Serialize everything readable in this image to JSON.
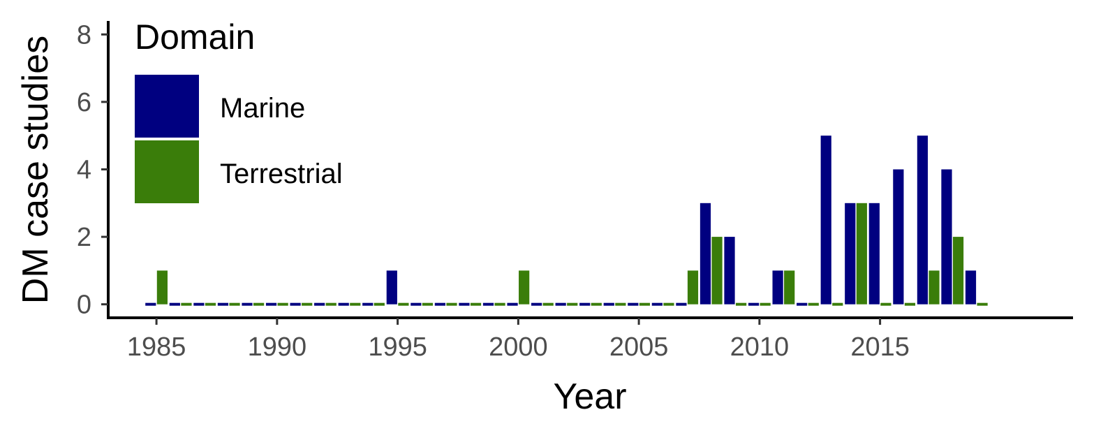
{
  "chart_data": {
    "type": "bar",
    "xlabel": "Year",
    "ylabel": "DM case studies",
    "x": [
      1985,
      1986,
      1987,
      1988,
      1989,
      1990,
      1991,
      1992,
      1993,
      1994,
      1995,
      1996,
      1997,
      1998,
      1999,
      2000,
      2001,
      2002,
      2003,
      2004,
      2005,
      2006,
      2007,
      2008,
      2009,
      2010,
      2011,
      2012,
      2013,
      2014,
      2015,
      2016,
      2017,
      2018,
      2019
    ],
    "x_ticks": [
      "1985",
      "1990",
      "1995",
      "2000",
      "2005",
      "2010",
      "2015"
    ],
    "x_tick_values": [
      1985,
      1990,
      1995,
      2000,
      2005,
      2010,
      2015
    ],
    "xlim": [
      1983,
      2023
    ],
    "y_ticks": [
      "0",
      "2",
      "4",
      "6",
      "8"
    ],
    "y_tick_values": [
      0,
      2,
      4,
      6,
      8
    ],
    "ylim": [
      -0.4,
      8.4
    ],
    "legend": {
      "title": "Domain",
      "placement": "top-left"
    },
    "grid": false,
    "series": [
      {
        "name": "Marine",
        "color": "#000080",
        "values": [
          0,
          0,
          0,
          0,
          0,
          0,
          0,
          0,
          0,
          0,
          1,
          0,
          0,
          0,
          0,
          0,
          0,
          0,
          0,
          0,
          0,
          0,
          0,
          3,
          2,
          0,
          1,
          0,
          5,
          3,
          3,
          4,
          5,
          4,
          1
        ]
      },
      {
        "name": "Terrestrial",
        "color": "#3a7d0a",
        "values": [
          1,
          0,
          0,
          0,
          0,
          0,
          0,
          0,
          0,
          0,
          0,
          0,
          0,
          0,
          0,
          1,
          0,
          0,
          0,
          0,
          0,
          0,
          1,
          2,
          0,
          0,
          1,
          0,
          0,
          3,
          0,
          0,
          1,
          2,
          0
        ]
      }
    ]
  }
}
